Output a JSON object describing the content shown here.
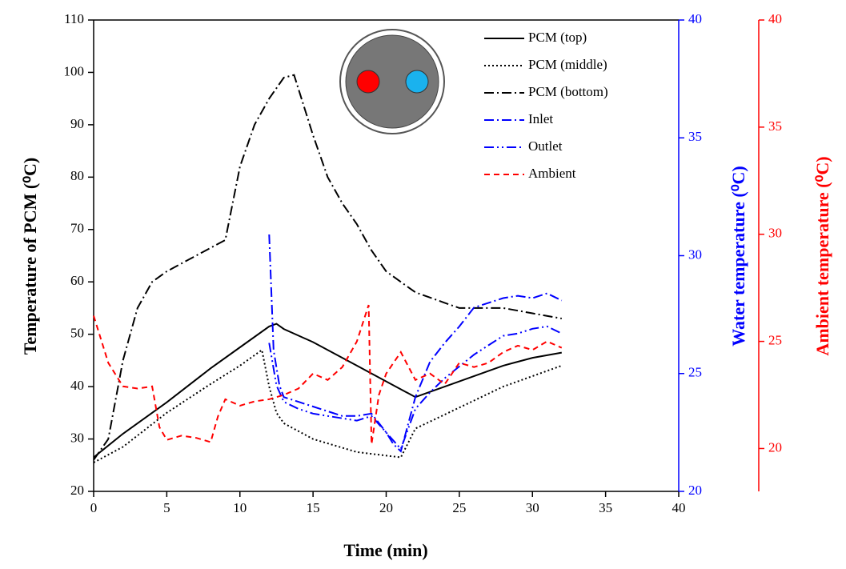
{
  "chart_data": {
    "type": "line",
    "x_label": "Time (min)",
    "y_label": "Temperature of PCM (⁰C)",
    "y2_label": "Water temperature (⁰C)",
    "y3_label": "Ambient temperature (⁰C)",
    "xlim": [
      0,
      40
    ],
    "xticks": [
      0,
      5,
      10,
      15,
      20,
      25,
      30,
      35,
      40
    ],
    "ylim": [
      20,
      110
    ],
    "yticks": [
      20,
      30,
      40,
      50,
      60,
      70,
      80,
      90,
      100,
      110
    ],
    "y2lim": [
      20,
      40
    ],
    "y2ticks": [
      20,
      25,
      30,
      35,
      40
    ],
    "y2_color": "#0000ff",
    "y3lim": [
      18,
      40
    ],
    "y3ticks": [
      20,
      25,
      30,
      35,
      40
    ],
    "y3_color": "#ff0000",
    "legend": "upper right",
    "series": [
      {
        "name": "PCM (top)",
        "color": "#000000",
        "style": "solid",
        "x": [
          0,
          2,
          5,
          8,
          10,
          12,
          12.5,
          13,
          15,
          18,
          20,
          22,
          25,
          28,
          30,
          32
        ],
        "values": [
          26.5,
          31,
          37,
          43.5,
          47.5,
          51.5,
          52,
          51,
          48.5,
          44,
          41,
          38,
          41,
          44,
          45.5,
          46.5
        ]
      },
      {
        "name": "PCM (middle)",
        "color": "#000000",
        "style": "dotted",
        "x": [
          0,
          2,
          5,
          8,
          10,
          11.5,
          12,
          12.5,
          13,
          15,
          18,
          21,
          22,
          25,
          28,
          30,
          32
        ],
        "values": [
          25.5,
          28.5,
          35,
          40.5,
          44,
          47,
          40,
          35,
          33,
          30,
          27.5,
          26.5,
          32,
          36,
          40,
          42,
          44
        ]
      },
      {
        "name": "PCM (bottom)",
        "color": "#000000",
        "style": "dash-dot",
        "x": [
          0,
          1,
          2,
          3,
          4,
          5,
          7,
          9,
          10,
          11,
          12,
          13,
          13.7,
          15,
          16,
          17,
          18,
          19,
          20,
          22,
          24,
          25,
          28,
          30,
          32
        ],
        "values": [
          26,
          30,
          45,
          55,
          60,
          62,
          65,
          68,
          82,
          90,
          95,
          99,
          99.5,
          88,
          80,
          75,
          71,
          66,
          62,
          58,
          56,
          55,
          55,
          54,
          53
        ]
      },
      {
        "name": "Inlet",
        "color": "#0000ff",
        "style": "dash-dot",
        "axis": "y2",
        "x": [
          12,
          12.3,
          12.7,
          13,
          14,
          15,
          16,
          17,
          18,
          19,
          20,
          20.5,
          21,
          22,
          23,
          24,
          25,
          26,
          27,
          28,
          29,
          30,
          31,
          32
        ],
        "values": [
          30.9,
          26,
          24.5,
          24,
          23.8,
          23.6,
          23.4,
          23.2,
          23.2,
          23.3,
          22.5,
          22,
          21.7,
          24,
          25.5,
          26.3,
          27,
          27.8,
          28,
          28.2,
          28.3,
          28.2,
          28.4,
          28.1
        ]
      },
      {
        "name": "Outlet",
        "color": "#0000ff",
        "style": "dash-dot-dot",
        "axis": "y2",
        "x": [
          12,
          12.5,
          13,
          14,
          15,
          16,
          17,
          18,
          19,
          20,
          21,
          22,
          23,
          24,
          25,
          26,
          27,
          28,
          29,
          30,
          31,
          32
        ],
        "values": [
          26.3,
          24.5,
          23.8,
          23.5,
          23.3,
          23.2,
          23.1,
          23,
          23.2,
          22.5,
          21.8,
          23.5,
          24.2,
          24.8,
          25.3,
          25.8,
          26.2,
          26.6,
          26.7,
          26.9,
          27,
          26.7
        ]
      },
      {
        "name": "Ambient",
        "color": "#ff0000",
        "style": "dashed",
        "axis": "y3",
        "x": [
          0,
          1,
          2,
          3,
          4,
          4.5,
          5,
          6,
          7,
          8,
          8.5,
          9,
          10,
          11,
          12,
          13,
          14,
          15,
          16,
          17,
          18,
          18.8,
          19,
          19.5,
          20,
          21,
          22,
          23,
          24,
          25,
          26,
          27,
          28,
          29,
          30,
          31,
          32
        ],
        "values": [
          26.2,
          24,
          22.9,
          22.8,
          22.9,
          21,
          20.4,
          20.6,
          20.5,
          20.3,
          21.5,
          22.3,
          22,
          22.2,
          22.3,
          22.5,
          22.8,
          23.5,
          23.2,
          23.8,
          25,
          26.7,
          20.2,
          22.5,
          23.5,
          24.5,
          23.2,
          23.5,
          23,
          24,
          23.8,
          24,
          24.5,
          24.8,
          24.6,
          25,
          24.7
        ]
      }
    ]
  }
}
